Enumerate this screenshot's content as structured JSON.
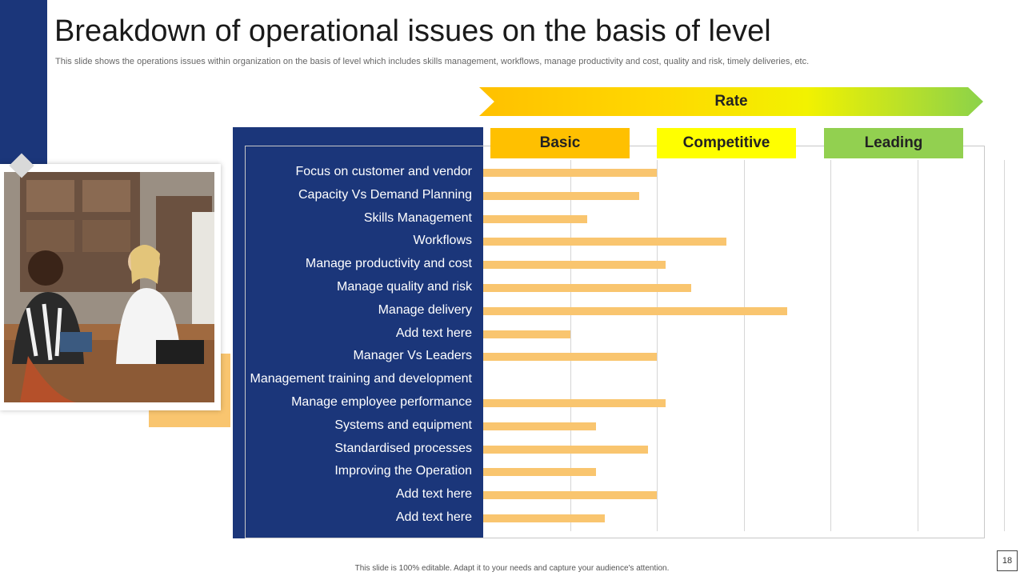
{
  "title": "Breakdown of operational issues on the basis of level",
  "subtitle": "This slide shows the operations issues within organization on the basis of level which includes skills management, workflows, manage productivity and cost, quality and risk, timely deliveries, etc.",
  "colors": {
    "navy": "#1b367a",
    "bar": "#f9c56f",
    "basic": "#ffc000",
    "competitive": "#ffff00",
    "leading": "#92d050"
  },
  "chart_data": {
    "type": "bar",
    "orientation": "horizontal",
    "header": "Rate",
    "levels": [
      "Basic",
      "Competitive",
      "Leading"
    ],
    "xlim": [
      0,
      6
    ],
    "categories": [
      "Focus on customer and vendor",
      "Capacity Vs Demand Planning",
      "Skills Management",
      "Workflows",
      "Manage productivity and cost",
      "Manage quality and risk",
      "Manage delivery",
      "Add text here",
      "Manager Vs Leaders",
      "Management training and development",
      "Manage employee performance",
      "Systems and equipment",
      "Standardised processes",
      "Improving the Operation",
      "Add text here",
      "Add text here"
    ],
    "values": [
      2.0,
      1.8,
      1.2,
      2.8,
      2.1,
      2.4,
      3.5,
      1.0,
      2.0,
      0,
      2.1,
      1.3,
      1.9,
      1.3,
      2.0,
      1.4
    ]
  },
  "footer": "This slide is 100% editable. Adapt it to your needs and capture your audience's attention.",
  "page_number": "18"
}
